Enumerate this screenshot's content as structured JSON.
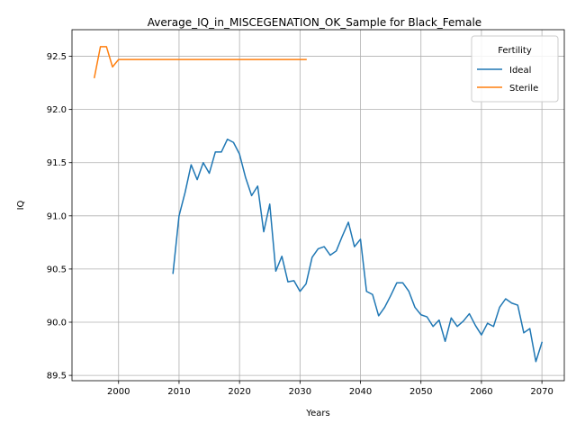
{
  "chart_data": {
    "type": "line",
    "title": "Average_IQ_in_MISCEGENATION_OK_Sample for Black_Female",
    "xlabel": "Years",
    "ylabel": "IQ",
    "xlim": [
      1992.3,
      2073.7
    ],
    "ylim": [
      89.45,
      92.75
    ],
    "xticks": [
      2000,
      2010,
      2020,
      2030,
      2040,
      2050,
      2060,
      2070
    ],
    "yticks": [
      89.5,
      90.0,
      90.5,
      91.0,
      91.5,
      92.0,
      92.5
    ],
    "ytick_labels": [
      "89.5",
      "90.0",
      "90.5",
      "91.0",
      "91.5",
      "92.0",
      "92.5"
    ],
    "grid": true,
    "legend": {
      "title": "Fertility",
      "placement": "top-right"
    },
    "series": [
      {
        "name": "Ideal",
        "color": "#1f77b4",
        "x": [
          2009,
          2010,
          2011,
          2012,
          2013,
          2014,
          2015,
          2016,
          2017,
          2018,
          2019,
          2020,
          2021,
          2022,
          2023,
          2024,
          2025,
          2026,
          2027,
          2028,
          2029,
          2030,
          2031,
          2032,
          2033,
          2034,
          2035,
          2036,
          2037,
          2038,
          2039,
          2040,
          2041,
          2042,
          2043,
          2044,
          2045,
          2046,
          2047,
          2048,
          2049,
          2050,
          2051,
          2052,
          2053,
          2054,
          2055,
          2056,
          2057,
          2058,
          2059,
          2060,
          2061,
          2062,
          2063,
          2064,
          2065,
          2066,
          2067,
          2068,
          2069,
          2070
        ],
        "y": [
          90.46,
          91.0,
          91.22,
          91.48,
          91.34,
          91.5,
          91.4,
          91.6,
          91.6,
          91.72,
          91.69,
          91.58,
          91.36,
          91.19,
          91.28,
          90.85,
          91.11,
          90.48,
          90.62,
          90.38,
          90.39,
          90.29,
          90.36,
          90.61,
          90.69,
          90.71,
          90.63,
          90.67,
          90.81,
          90.94,
          90.71,
          90.78,
          90.29,
          90.26,
          90.06,
          90.14,
          90.25,
          90.37,
          90.37,
          90.29,
          90.14,
          90.07,
          90.05,
          89.96,
          90.02,
          89.82,
          90.04,
          89.96,
          90.01,
          90.08,
          89.97,
          89.88,
          89.99,
          89.96,
          90.14,
          90.22,
          90.18,
          90.16,
          89.9,
          89.94,
          89.63,
          89.81
        ]
      },
      {
        "name": "Sterile",
        "color": "#ff7f0e",
        "x": [
          1996,
          1997,
          1998,
          1999,
          2000,
          2001,
          2002,
          2003,
          2004,
          2005,
          2006,
          2007,
          2008,
          2009,
          2010,
          2011,
          2012,
          2013,
          2014,
          2015,
          2016,
          2017,
          2018,
          2019,
          2020,
          2021,
          2022,
          2023,
          2024,
          2025,
          2026,
          2027,
          2028,
          2029,
          2030,
          2031
        ],
        "y": [
          92.3,
          92.59,
          92.59,
          92.4,
          92.47,
          92.47,
          92.47,
          92.47,
          92.47,
          92.47,
          92.47,
          92.47,
          92.47,
          92.47,
          92.47,
          92.47,
          92.47,
          92.47,
          92.47,
          92.47,
          92.47,
          92.47,
          92.47,
          92.47,
          92.47,
          92.47,
          92.47,
          92.47,
          92.47,
          92.47,
          92.47,
          92.47,
          92.47,
          92.47,
          92.47,
          92.47
        ]
      }
    ]
  }
}
